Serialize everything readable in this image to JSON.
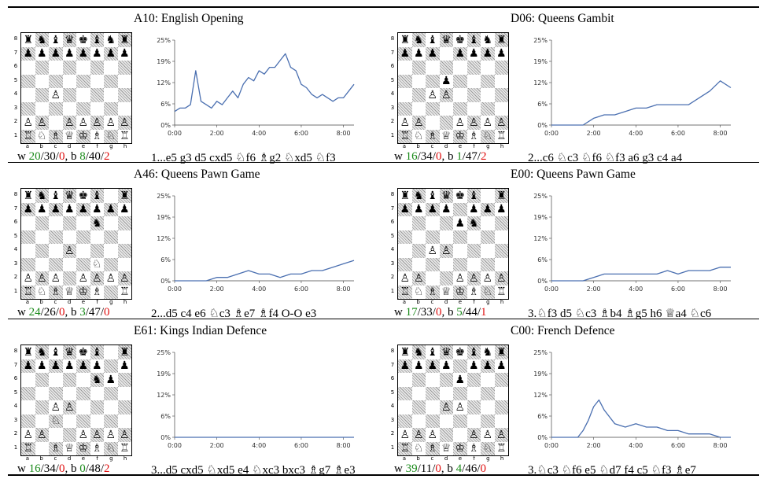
{
  "colors": {
    "line": "#4a6fb0",
    "win": "#1a8a1a",
    "loss": "#e01010"
  },
  "piece_glyphs": {
    "K": "♔",
    "Q": "♕",
    "R": "♖",
    "B": "♗",
    "N": "♘",
    "P": "♙",
    "k": "♚",
    "q": "♛",
    "r": "♜",
    "b": "♝",
    "n": "♞",
    "p": "♟"
  },
  "board_labels": {
    "files": [
      "a",
      "b",
      "c",
      "d",
      "e",
      "f",
      "g",
      "h"
    ],
    "ranks": [
      "8",
      "7",
      "6",
      "5",
      "4",
      "3",
      "2",
      "1"
    ]
  },
  "chart_data": [
    {
      "type": "line",
      "title": "A10: English Opening",
      "xlabel": "",
      "ylabel": "",
      "ylim": [
        0,
        25
      ],
      "xlim": [
        0,
        510
      ],
      "yticks": [
        "0%",
        "6%",
        "12%",
        "19%",
        "25%"
      ],
      "xticks": [
        "0:00",
        "2:00",
        "4:00",
        "6:00",
        "8:00"
      ],
      "series": [
        {
          "x": [
            0,
            15,
            30,
            45,
            60,
            75,
            90,
            105,
            120,
            135,
            150,
            165,
            180,
            195,
            210,
            225,
            240,
            255,
            270,
            285,
            300,
            315,
            330,
            345,
            360,
            375,
            390,
            405,
            420,
            435,
            450,
            465,
            480,
            495,
            510
          ],
          "y": [
            4,
            5,
            5,
            6,
            16,
            7,
            6,
            5,
            7,
            6,
            8,
            10,
            8,
            12,
            14,
            13,
            16,
            15,
            17,
            17,
            19,
            21,
            17,
            16,
            12,
            11,
            9,
            8,
            9,
            8,
            7,
            8,
            8,
            10,
            12
          ]
        }
      ],
      "board": [
        "rnbqkbnr",
        "pppppppp",
        "........",
        "........",
        "..P.....",
        "........",
        "PP.PPPPP",
        "RNBQKBNR"
      ],
      "stats": {
        "w": [
          "20",
          "30",
          "0"
        ],
        "b": [
          "8",
          "40",
          "2"
        ]
      },
      "moves": "1...e5 g3 d5 cxd5 ♘f6 ♗g2 ♘xd5 ♘f3"
    },
    {
      "type": "line",
      "title": "D06: Queens Gambit",
      "xlabel": "",
      "ylabel": "",
      "ylim": [
        0,
        25
      ],
      "xlim": [
        0,
        510
      ],
      "yticks": [
        "0%",
        "6%",
        "12%",
        "19%",
        "25%"
      ],
      "xticks": [
        "0:00",
        "2:00",
        "4:00",
        "6:00",
        "8:00"
      ],
      "series": [
        {
          "x": [
            0,
            30,
            60,
            90,
            120,
            150,
            180,
            210,
            240,
            270,
            300,
            330,
            360,
            390,
            420,
            450,
            480,
            510
          ],
          "y": [
            0,
            0,
            0,
            0,
            2,
            3,
            3,
            4,
            5,
            5,
            6,
            6,
            6,
            6,
            8,
            10,
            13,
            11
          ]
        }
      ],
      "board": [
        "rnbqkbnr",
        "ppp.pppp",
        "........",
        "...p....",
        "..PP....",
        "........",
        "PP..PPPP",
        "RNBQKBNR"
      ],
      "stats": {
        "w": [
          "16",
          "34",
          "0"
        ],
        "b": [
          "1",
          "47",
          "2"
        ]
      },
      "moves": "2...c6 ♘c3 ♘f6 ♘f3 a6 g3 c4 a4"
    },
    {
      "type": "line",
      "title": "A46: Queens Pawn Game",
      "xlabel": "",
      "ylabel": "",
      "ylim": [
        0,
        25
      ],
      "xlim": [
        0,
        510
      ],
      "yticks": [
        "0%",
        "6%",
        "12%",
        "19%",
        "25%"
      ],
      "xticks": [
        "0:00",
        "2:00",
        "4:00",
        "6:00",
        "8:00"
      ],
      "series": [
        {
          "x": [
            0,
            30,
            60,
            90,
            120,
            150,
            180,
            210,
            240,
            270,
            300,
            330,
            360,
            390,
            420,
            450,
            480,
            510
          ],
          "y": [
            0,
            0,
            0,
            0,
            1,
            1,
            2,
            3,
            2,
            2,
            1,
            2,
            2,
            3,
            3,
            4,
            5,
            6
          ]
        }
      ],
      "board": [
        "rnbqkb.r",
        "pppppppp",
        ".....n..",
        "........",
        "...P....",
        ".....N..",
        "PPP.PPPP",
        "RNBQKB.R"
      ],
      "stats": {
        "w": [
          "24",
          "26",
          "0"
        ],
        "b": [
          "3",
          "47",
          "0"
        ]
      },
      "moves": "2...d5 c4 e6 ♘c3 ♗e7 ♗f4 O-O e3"
    },
    {
      "type": "line",
      "title": "E00: Queens Pawn Game",
      "xlabel": "",
      "ylabel": "",
      "ylim": [
        0,
        25
      ],
      "xlim": [
        0,
        510
      ],
      "yticks": [
        "0%",
        "6%",
        "12%",
        "19%",
        "25%"
      ],
      "xticks": [
        "0:00",
        "2:00",
        "4:00",
        "6:00",
        "8:00"
      ],
      "series": [
        {
          "x": [
            0,
            30,
            60,
            90,
            120,
            150,
            180,
            210,
            240,
            270,
            300,
            330,
            360,
            390,
            420,
            450,
            480,
            510
          ],
          "y": [
            0,
            0,
            0,
            0,
            1,
            2,
            2,
            2,
            2,
            2,
            2,
            3,
            2,
            3,
            3,
            3,
            4,
            4
          ]
        }
      ],
      "board": [
        "rnbqkb.r",
        "pppp.ppp",
        "....pn..",
        "........",
        "..PP....",
        "........",
        "PP..PPPP",
        "RNBQKBNR"
      ],
      "stats": {
        "w": [
          "17",
          "33",
          "0"
        ],
        "b": [
          "5",
          "44",
          "1"
        ]
      },
      "moves": "3.♘f3 d5 ♘c3 ♗b4 ♗g5 h6 ♕a4 ♘c6"
    },
    {
      "type": "line",
      "title": "E61: Kings Indian Defence",
      "xlabel": "",
      "ylabel": "",
      "ylim": [
        0,
        25
      ],
      "xlim": [
        0,
        510
      ],
      "yticks": [
        "0%",
        "6%",
        "12%",
        "19%",
        "25%"
      ],
      "xticks": [
        "0:00",
        "2:00",
        "4:00",
        "6:00",
        "8:00"
      ],
      "series": [
        {
          "x": [
            0,
            30,
            60,
            90,
            120,
            150,
            180,
            210,
            240,
            270,
            300,
            330,
            360,
            390,
            420,
            450,
            480,
            510
          ],
          "y": [
            0,
            0,
            0,
            0,
            0,
            0,
            0,
            0,
            0,
            0,
            0,
            0,
            0,
            0,
            0,
            0,
            0,
            0
          ]
        }
      ],
      "board": [
        "rnbqkb.r",
        "pppppp.p",
        ".....np.",
        "........",
        "..PP....",
        "..N.....",
        "PP..PPPP",
        "R.BQKBNR"
      ],
      "stats": {
        "w": [
          "16",
          "34",
          "0"
        ],
        "b": [
          "0",
          "48",
          "2"
        ]
      },
      "moves": "3...d5 cxd5 ♘xd5 e4 ♘xc3 bxc3 ♗g7 ♗e3"
    },
    {
      "type": "line",
      "title": "C00: French Defence",
      "xlabel": "",
      "ylabel": "",
      "ylim": [
        0,
        25
      ],
      "xlim": [
        0,
        510
      ],
      "yticks": [
        "0%",
        "6%",
        "12%",
        "19%",
        "25%"
      ],
      "xticks": [
        "0:00",
        "2:00",
        "4:00",
        "6:00",
        "8:00"
      ],
      "series": [
        {
          "x": [
            0,
            15,
            30,
            45,
            60,
            75,
            90,
            105,
            120,
            135,
            150,
            180,
            210,
            240,
            270,
            300,
            330,
            360,
            390,
            420,
            450,
            480,
            510
          ],
          "y": [
            0,
            0,
            0,
            0,
            0,
            0,
            2,
            5,
            9,
            11,
            8,
            4,
            3,
            4,
            3,
            3,
            2,
            2,
            1,
            1,
            1,
            0,
            0
          ]
        }
      ],
      "board": [
        "rnbqkbnr",
        "pppp.ppp",
        "....p...",
        "........",
        "...PP...",
        "........",
        "PPP..PPP",
        "RNBQKBNR"
      ],
      "stats": {
        "w": [
          "39",
          "11",
          "0"
        ],
        "b": [
          "4",
          "46",
          "0"
        ]
      },
      "moves": "3.♘c3 ♘f6 e5 ♘d7 f4 c5 ♘f3 ♗e7"
    }
  ]
}
